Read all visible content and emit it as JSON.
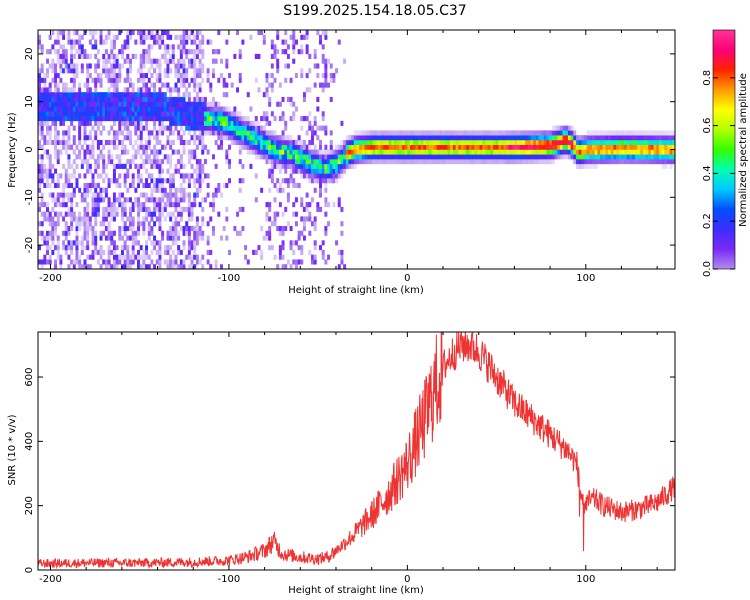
{
  "title": "S199.2025.154.18.05.C37",
  "chart_data": [
    {
      "type": "heatmap",
      "xlabel": "Height of straight line (km)",
      "ylabel": "Frequency (Hz)",
      "xlim": [
        -207,
        150
      ],
      "ylim": [
        -25,
        25
      ],
      "x_ticks": [
        -200,
        -100,
        0,
        100
      ],
      "y_ticks": [
        -20,
        -10,
        0,
        10,
        20
      ],
      "colorbar": {
        "label": "Normalized spectral amplitude",
        "range": [
          0,
          1
        ],
        "ticks": [
          0.0,
          0.2,
          0.4,
          0.6,
          0.8
        ],
        "colors": [
          "#ffffff",
          "#b08cf0",
          "#7a2af5",
          "#3d2dff",
          "#0050ff",
          "#00c8ff",
          "#00ffb0",
          "#33ff00",
          "#b4ff00",
          "#ffff00",
          "#ff9900",
          "#ff2200",
          "#ff0077",
          "#ff3399"
        ]
      },
      "ridge": {
        "x": [
          -140,
          -120,
          -105,
          -95,
          -85,
          -75,
          -65,
          -55,
          -47,
          -40,
          -35,
          -30,
          -20,
          -10,
          0,
          20,
          40,
          60,
          80,
          88,
          92,
          95,
          100,
          120,
          150
        ],
        "y": [
          9,
          7,
          6,
          4,
          2,
          0,
          -1,
          -3,
          -4,
          -3,
          -1,
          0,
          0.5,
          0.5,
          0.5,
          0.5,
          0.5,
          0.5,
          0.8,
          2,
          1,
          -0.5,
          0,
          0.2,
          0
        ]
      }
    },
    {
      "type": "line",
      "xlabel": "Height of straight line (km)",
      "ylabel": "SNR (10 * v/v)",
      "xlim": [
        -207,
        150
      ],
      "ylim": [
        0,
        740
      ],
      "x_ticks": [
        -200,
        -100,
        0,
        100
      ],
      "y_ticks": [
        0,
        200,
        400,
        600
      ],
      "color": "#ee3333",
      "series": [
        {
          "x": [
            -207,
            -180,
            -150,
            -120,
            -100,
            -90,
            -80,
            -75,
            -70,
            -60,
            -50,
            -45,
            -40,
            -30,
            -20,
            -10,
            0,
            5,
            10,
            15,
            20,
            25,
            30,
            35,
            40,
            50,
            60,
            70,
            80,
            90,
            95,
            98,
            100,
            105,
            110,
            120,
            130,
            140,
            150
          ],
          "y": [
            20,
            22,
            22,
            25,
            30,
            40,
            60,
            90,
            50,
            40,
            35,
            40,
            60,
            110,
            170,
            240,
            330,
            400,
            470,
            560,
            630,
            670,
            700,
            700,
            680,
            600,
            520,
            470,
            420,
            370,
            330,
            200,
            210,
            220,
            200,
            180,
            190,
            210,
            260
          ]
        }
      ]
    }
  ]
}
